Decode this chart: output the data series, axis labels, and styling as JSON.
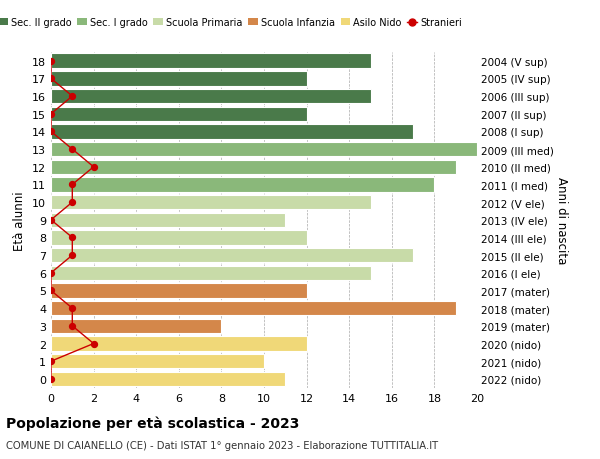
{
  "ages": [
    18,
    17,
    16,
    15,
    14,
    13,
    12,
    11,
    10,
    9,
    8,
    7,
    6,
    5,
    4,
    3,
    2,
    1,
    0
  ],
  "right_labels": [
    "2004 (V sup)",
    "2005 (IV sup)",
    "2006 (III sup)",
    "2007 (II sup)",
    "2008 (I sup)",
    "2009 (III med)",
    "2010 (II med)",
    "2011 (I med)",
    "2012 (V ele)",
    "2013 (IV ele)",
    "2014 (III ele)",
    "2015 (II ele)",
    "2016 (I ele)",
    "2017 (mater)",
    "2018 (mater)",
    "2019 (mater)",
    "2020 (nido)",
    "2021 (nido)",
    "2022 (nido)"
  ],
  "bar_values": [
    15,
    12,
    15,
    12,
    17,
    20,
    19,
    18,
    15,
    11,
    12,
    17,
    15,
    12,
    19,
    8,
    12,
    10,
    11
  ],
  "bar_colors": [
    "#4a7a4a",
    "#4a7a4a",
    "#4a7a4a",
    "#4a7a4a",
    "#4a7a4a",
    "#8ab87a",
    "#8ab87a",
    "#8ab87a",
    "#c8dba8",
    "#c8dba8",
    "#c8dba8",
    "#c8dba8",
    "#c8dba8",
    "#d4874a",
    "#d4874a",
    "#d4874a",
    "#f0d878",
    "#f0d878",
    "#f0d878"
  ],
  "stranieri_values": [
    0,
    0,
    1,
    0,
    0,
    1,
    2,
    1,
    1,
    0,
    1,
    1,
    0,
    0,
    1,
    1,
    2,
    0,
    0
  ],
  "legend_labels": [
    "Sec. II grado",
    "Sec. I grado",
    "Scuola Primaria",
    "Scuola Infanzia",
    "Asilo Nido",
    "Stranieri"
  ],
  "legend_colors": [
    "#4a7a4a",
    "#8ab87a",
    "#c8dba8",
    "#d4874a",
    "#f0d878",
    "#cc0000"
  ],
  "title": "Popolazione per età scolastica - 2023",
  "subtitle": "COMUNE DI CAIANELLO (CE) - Dati ISTAT 1° gennaio 2023 - Elaborazione TUTTITALIA.IT",
  "ylabel": "Età alunni",
  "ylabel_right": "Anni di nascita",
  "xlim": [
    0,
    20
  ],
  "xticks": [
    0,
    2,
    4,
    6,
    8,
    10,
    12,
    14,
    16,
    18,
    20
  ],
  "bg_color": "#ffffff",
  "bar_height": 0.82,
  "ylim": [
    -0.5,
    18.5
  ]
}
